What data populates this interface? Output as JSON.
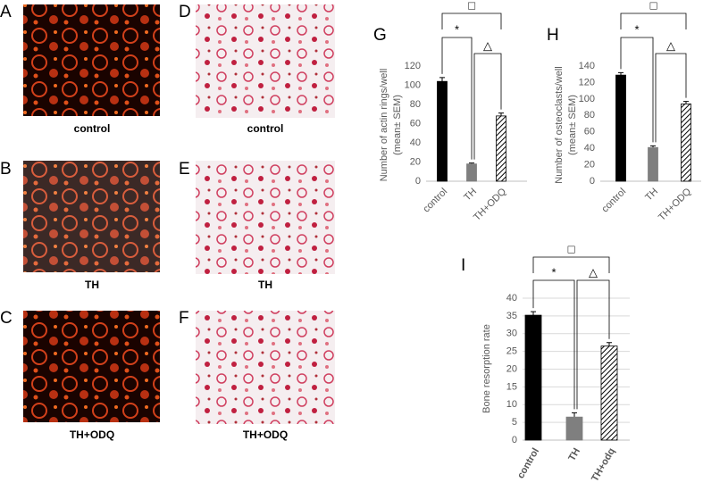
{
  "panels": [
    {
      "letter": "A",
      "caption": "control"
    },
    {
      "letter": "B",
      "caption": "TH"
    },
    {
      "letter": "C",
      "caption": "TH+ODQ"
    },
    {
      "letter": "D",
      "caption": "control"
    },
    {
      "letter": "E",
      "caption": "TH"
    },
    {
      "letter": "F",
      "caption": "TH+ODQ"
    }
  ],
  "chart_data": [
    {
      "type": "bar",
      "panel_letter": "G",
      "y_label": [
        "Number of actin rings/well",
        "(mean± SEM)"
      ],
      "categories": [
        "control",
        "TH",
        "TH+ODQ"
      ],
      "values": [
        104,
        18,
        68
      ],
      "errors": [
        4,
        1,
        3
      ],
      "colors": [
        "#000000",
        "#7f7f7f",
        "#000000"
      ],
      "hatch": [
        false,
        false,
        true
      ],
      "ylim": [
        0,
        120
      ],
      "yticks": [
        0,
        20,
        40,
        60,
        80,
        100,
        120
      ],
      "grid": false,
      "significance": [
        "*",
        "△",
        "□"
      ]
    },
    {
      "type": "bar",
      "panel_letter": "H",
      "y_label": [
        "Number of osteoclasts/well",
        "(mean± SEM)"
      ],
      "categories": [
        "control",
        "TH",
        "TH+ODQ"
      ],
      "values": [
        129,
        41,
        94
      ],
      "errors": [
        3,
        2,
        3
      ],
      "colors": [
        "#000000",
        "#7f7f7f",
        "#000000"
      ],
      "hatch": [
        false,
        false,
        true
      ],
      "ylim": [
        0,
        140
      ],
      "yticks": [
        0,
        20,
        40,
        60,
        80,
        100,
        120,
        140
      ],
      "grid": false,
      "significance": [
        "*",
        "△",
        "□"
      ]
    },
    {
      "type": "bar",
      "panel_letter": "I",
      "y_label": [
        "Bone resorption rate"
      ],
      "categories": [
        "control",
        "TH",
        "TH+odq"
      ],
      "values": [
        35.2,
        6.5,
        26.5
      ],
      "errors": [
        1,
        1.2,
        1
      ],
      "colors": [
        "#000000",
        "#7f7f7f",
        "#000000"
      ],
      "hatch": [
        false,
        false,
        true
      ],
      "ylim": [
        0,
        40
      ],
      "yticks": [
        0,
        5,
        10,
        15,
        20,
        25,
        30,
        35,
        40
      ],
      "grid": true,
      "significance": [
        "*",
        "△",
        "□"
      ]
    }
  ]
}
